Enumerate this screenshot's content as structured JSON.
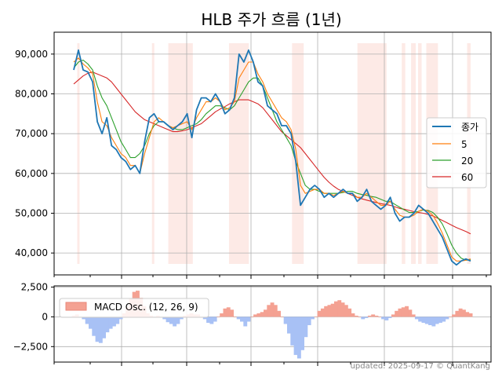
{
  "chart_data": [
    {
      "type": "line",
      "title": "HLB 주가 흐름 (1년)",
      "xlabel": "",
      "ylabel": "",
      "ylim": [
        34500,
        95500
      ],
      "yticks": [
        40000,
        50000,
        60000,
        70000,
        80000,
        90000
      ],
      "ytick_labels": [
        "40,000",
        "50,000",
        "60,000",
        "70,000",
        "80,000",
        "90,000"
      ],
      "grid": true,
      "legend_position": "center-right",
      "colors": {
        "종가": "#1f77b4",
        "5": "#ff7f0e",
        "20": "#2ca02c",
        "60": "#d62728",
        "shade": "#fdeae6"
      },
      "shaded_spans": [
        [
          3,
          5
        ],
        [
          67,
          69
        ],
        [
          81,
          102
        ],
        [
          133,
          150
        ],
        [
          187,
          197
        ],
        [
          243,
          268
        ],
        [
          281,
          284
        ],
        [
          289,
          293
        ],
        [
          295,
          298
        ],
        [
          302,
          312
        ],
        [
          337,
          340
        ]
      ],
      "series": [
        {
          "name": "종가",
          "values": [
            86000,
            91000,
            86000,
            85500,
            83000,
            73000,
            70000,
            74000,
            67000,
            66000,
            64000,
            63000,
            61000,
            62000,
            60000,
            68000,
            74000,
            75000,
            73000,
            73000,
            72000,
            71000,
            72000,
            73000,
            75000,
            69000,
            76000,
            79000,
            79000,
            78000,
            80000,
            78000,
            75000,
            76000,
            79000,
            90000,
            88000,
            91000,
            88000,
            83000,
            82000,
            77000,
            76000,
            75000,
            72000,
            72000,
            70000,
            63000,
            52000,
            54000,
            56000,
            57000,
            56000,
            54000,
            55000,
            54000,
            55000,
            56000,
            55000,
            55000,
            53000,
            54000,
            56000,
            53000,
            52000,
            51000,
            52000,
            54000,
            50000,
            48000,
            49000,
            49000,
            50000,
            52000,
            51000,
            50000,
            48000,
            46000,
            44000,
            41000,
            38000,
            37000,
            38000,
            38500,
            38000
          ]
        },
        {
          "name": "5",
          "values": [
            88000,
            89000,
            87500,
            86500,
            85000,
            78000,
            73000,
            72000,
            69000,
            67000,
            65000,
            64000,
            62000,
            62000,
            60000,
            65000,
            69000,
            73000,
            74000,
            73000,
            72000,
            71500,
            72000,
            72500,
            73000,
            71000,
            74000,
            76000,
            78000,
            78000,
            79000,
            78000,
            76000,
            76500,
            78000,
            84000,
            86000,
            88000,
            88000,
            85000,
            83000,
            80000,
            78000,
            76000,
            74000,
            73000,
            71000,
            66000,
            57000,
            55000,
            55500,
            56000,
            56000,
            55000,
            55000,
            54500,
            55000,
            55500,
            55000,
            55000,
            54000,
            54000,
            55000,
            54000,
            53000,
            52000,
            52000,
            53000,
            51000,
            49500,
            49000,
            49000,
            49500,
            50500,
            51000,
            50500,
            49500,
            47500,
            45000,
            42000,
            39000,
            38000,
            38000,
            38200,
            38500
          ]
        },
        {
          "name": "20",
          "values": [
            86500,
            88000,
            88500,
            87500,
            86000,
            82000,
            79000,
            77000,
            74000,
            71000,
            68000,
            66000,
            64000,
            64000,
            65000,
            67000,
            70000,
            72000,
            73000,
            73000,
            72000,
            71500,
            71000,
            71000,
            71500,
            72000,
            72500,
            73500,
            75000,
            76000,
            77000,
            77000,
            76500,
            76000,
            77000,
            79000,
            81000,
            83000,
            84000,
            84000,
            82000,
            79000,
            76000,
            73000,
            71000,
            69000,
            67000,
            63000,
            60000,
            57000,
            56000,
            56000,
            55500,
            55000,
            55000,
            55000,
            55000,
            55200,
            55500,
            55500,
            55000,
            54700,
            54500,
            54200,
            54000,
            53500,
            53000,
            53000,
            52200,
            51500,
            50800,
            50200,
            50200,
            50500,
            50800,
            50700,
            50200,
            49000,
            47300,
            44800,
            42000,
            40000,
            38700,
            38200,
            38300
          ]
        },
        {
          "name": "60",
          "values": [
            82500,
            83500,
            84500,
            85200,
            85500,
            85000,
            84500,
            84000,
            83000,
            81500,
            80000,
            78500,
            77000,
            75500,
            74500,
            73500,
            73000,
            72500,
            72000,
            71500,
            71000,
            70500,
            70500,
            70700,
            71000,
            71500,
            72000,
            72500,
            73500,
            74500,
            75500,
            76200,
            76800,
            77500,
            78000,
            78500,
            78500,
            78500,
            78000,
            77500,
            76500,
            75000,
            73500,
            72000,
            70500,
            69500,
            68500,
            67500,
            66500,
            65000,
            63500,
            62000,
            60500,
            59000,
            57800,
            56800,
            56000,
            55500,
            55000,
            54500,
            54000,
            53600,
            53300,
            53000,
            52700,
            52400,
            52200,
            52000,
            51600,
            51200,
            51000,
            50700,
            50400,
            50200,
            50000,
            49700,
            49300,
            48800,
            48200,
            47600,
            47000,
            46400,
            45900,
            45400,
            44800
          ]
        }
      ]
    },
    {
      "type": "bar",
      "title": "",
      "xlabel": "",
      "ylabel": "",
      "ylim": [
        -3800,
        2600
      ],
      "yticks": [
        -2500,
        0,
        2500
      ],
      "ytick_labels": [
        "−2,500",
        "0",
        "2,500"
      ],
      "grid": true,
      "legend_position": "top-left",
      "colors": {
        "positive": "#f4a192",
        "negative": "#a8c1f5"
      },
      "series": [
        {
          "name": "MACD Osc. (12, 26, 9)",
          "values": [
            100,
            200,
            0,
            -200,
            -600,
            -1000,
            -1600,
            -2100,
            -2200,
            -1800,
            -1300,
            -1000,
            -800,
            -600,
            -200,
            300,
            800,
            1500,
            2100,
            2200,
            1600,
            900,
            300,
            100,
            0,
            100,
            0,
            -200,
            -450,
            -600,
            -800,
            -600,
            -200,
            100,
            200,
            300,
            200,
            200,
            0,
            -200,
            -500,
            -600,
            -400,
            0,
            300,
            700,
            800,
            600,
            0,
            -200,
            -400,
            -800,
            -400,
            0,
            200,
            300,
            400,
            600,
            1000,
            1200,
            1000,
            500,
            0,
            -600,
            -1400,
            -2400,
            -3200,
            -3500,
            -2800,
            -1700,
            -700,
            -200,
            0,
            500,
            700,
            900,
            1000,
            1100,
            1300,
            1400,
            1200,
            1000,
            700,
            300,
            100,
            0,
            -200,
            -100,
            100,
            200,
            100,
            0,
            -200,
            -300,
            -100,
            200,
            500,
            700,
            800,
            900,
            600,
            200,
            -200,
            -400,
            -500,
            -600,
            -700,
            -800,
            -600,
            -500,
            -400,
            -200,
            0,
            200,
            500,
            700,
            600,
            400,
            300
          ]
        }
      ]
    }
  ],
  "footer": {
    "text": "updated: 2025-09-17 © QuantKang"
  }
}
